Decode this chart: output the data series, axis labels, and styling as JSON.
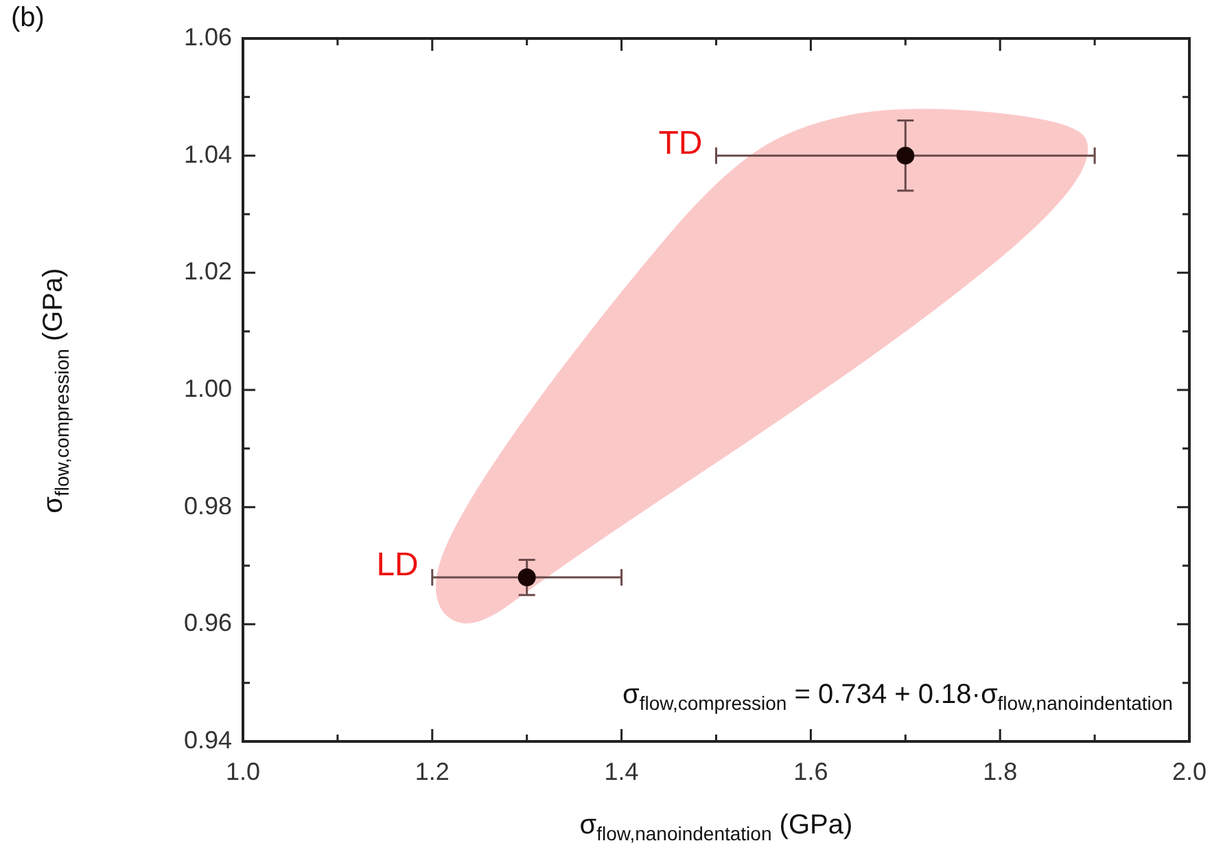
{
  "chart_data": {
    "type": "scatter",
    "xlabel": "σ$_{flow,nanoindentation}$ (GPa)",
    "ylabel": "σ$_{flow,compression}$ (GPa)",
    "series": [
      {
        "color": "#1a0505",
        "x": [
          1.3,
          1.7
        ],
        "values": [
          0.968,
          1.04
        ],
        "errors": [
          [
            0.965,
            0.971
          ],
          [
            1.034,
            1.046
          ]
        ],
        "xerrors": [
          [
            1.2,
            1.4
          ],
          [
            1.5,
            1.9
          ]
        ]
      }
    ],
    "marker": "circle",
    "xlim": [
      1.0,
      2.0
    ],
    "xticks": [
      {
        "value": 1.0,
        "label": "1.0"
      },
      {
        "value": 1.1,
        "label": null
      },
      1.2,
      {
        "value": 1.3,
        "label": null
      },
      1.4,
      {
        "value": 1.5,
        "label": null
      },
      1.6,
      {
        "value": 1.7,
        "label": null
      },
      1.8,
      {
        "value": 1.9,
        "label": null
      },
      {
        "value": 2.0,
        "label": "2.0"
      }
    ],
    "ylim": [
      0.94,
      1.06
    ],
    "yticks": [
      {
        "value": 0.94,
        "label": "0.94"
      },
      {
        "value": 0.95,
        "label": null
      },
      {
        "value": 0.96,
        "label": "0.96"
      },
      {
        "value": 0.97,
        "label": null
      },
      {
        "value": 0.98,
        "label": "0.98"
      },
      {
        "value": 0.99,
        "label": null
      },
      {
        "value": 1.0,
        "label": "1.00"
      },
      {
        "value": 1.01,
        "label": null
      },
      {
        "value": 1.02,
        "label": "1.02"
      },
      {
        "value": 1.03,
        "label": null
      },
      {
        "value": 1.04,
        "label": "1.04"
      },
      {
        "value": 1.05,
        "label": null
      },
      {
        "value": 1.06,
        "label": "1.06"
      }
    ],
    "grid": false,
    "legend": false,
    "annotations": [
      "(b)",
      "σ$_{flow,compression}$ = 0.734 + 0.18·σ$_{flow,nanoindentation}$",
      "LD",
      "TD"
    ]
  }
}
